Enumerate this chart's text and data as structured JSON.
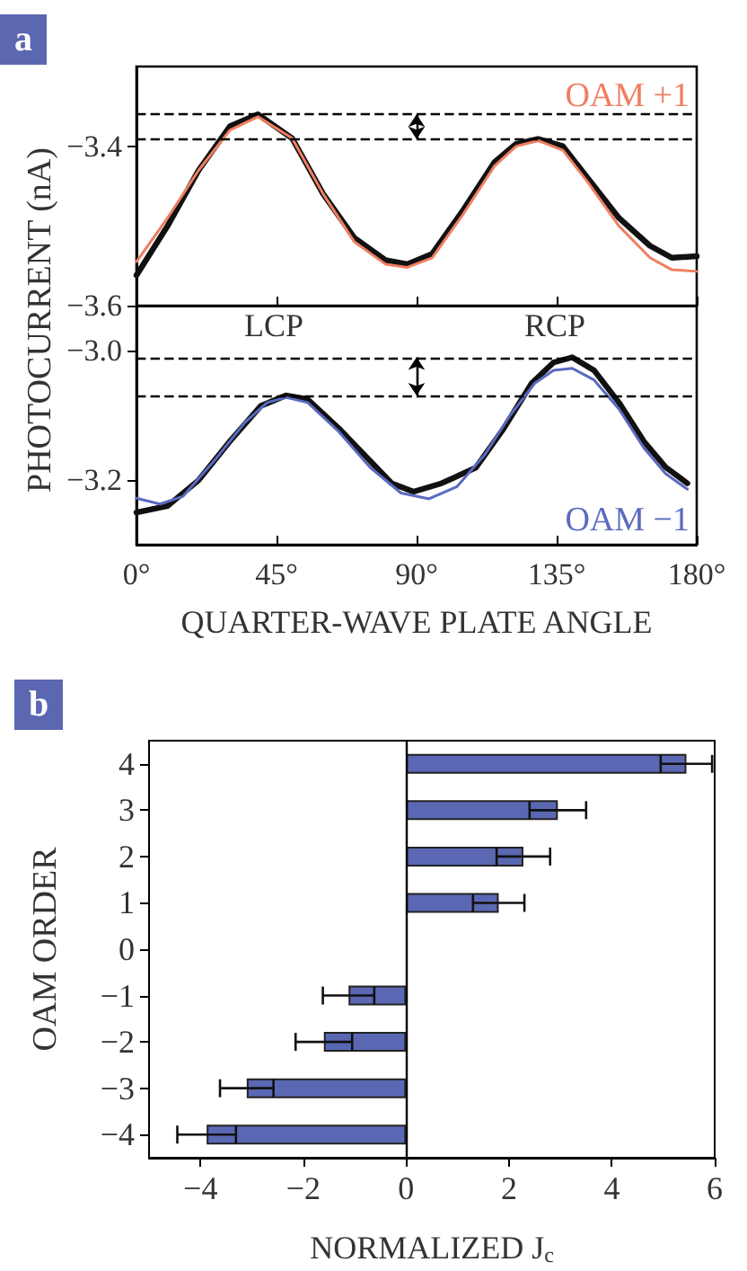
{
  "chart_data": [
    {
      "type": "line",
      "ylabel": "PHOTOCURRENT (nA)",
      "annotations": [
        "a"
      ],
      "xlim": [
        0,
        180
      ],
      "xticks": [
        {
          "value": 0,
          "label": null
        },
        {
          "value": 45,
          "label": null
        },
        {
          "value": 90,
          "label": null
        },
        {
          "value": 135,
          "label": null
        },
        {
          "value": 180,
          "label": null
        }
      ],
      "ylim": [
        -3.6,
        -3.3
      ],
      "yticks": [
        {
          "value": -3.6,
          "label": "−3.6"
        },
        {
          "value": -3.4,
          "label": "−3.4"
        }
      ],
      "tick_labels": "y",
      "grid": false,
      "marker": "none",
      "line_style": "solid",
      "ref_lines": [
        {
          "axis": "y",
          "value": -3.36,
          "line_style": "dashed",
          "color": "#000000"
        },
        {
          "axis": "y",
          "value": -3.391,
          "line_style": "dashed",
          "color": "#000000"
        }
      ],
      "series": [
        {
          "color": "#111111",
          "x": [
            0,
            10,
            20,
            30,
            39,
            50,
            60,
            70,
            80,
            87,
            95,
            105,
            115,
            122,
            129,
            137,
            145,
            155,
            165,
            172,
            180
          ],
          "values": [
            -3.562,
            -3.5,
            -3.43,
            -3.375,
            -3.36,
            -3.39,
            -3.46,
            -3.515,
            -3.543,
            -3.548,
            -3.535,
            -3.48,
            -3.42,
            -3.397,
            -3.391,
            -3.4,
            -3.44,
            -3.49,
            -3.525,
            -3.54,
            -3.538
          ]
        },
        {
          "name": "OAM +1",
          "color": "#f07e60",
          "x": [
            0,
            10,
            20,
            30,
            39,
            50,
            60,
            70,
            80,
            87,
            95,
            105,
            115,
            122,
            129,
            137,
            145,
            155,
            165,
            172,
            180
          ],
          "values": [
            -3.545,
            -3.49,
            -3.43,
            -3.38,
            -3.363,
            -3.39,
            -3.46,
            -3.52,
            -3.548,
            -3.552,
            -3.54,
            -3.485,
            -3.425,
            -3.4,
            -3.393,
            -3.405,
            -3.445,
            -3.5,
            -3.54,
            -3.555,
            -3.557
          ]
        }
      ]
    },
    {
      "type": "line",
      "xlabel": "QUARTER-WAVE PLATE ANGLE",
      "annotations": [
        "LCP",
        "RCP"
      ],
      "xlim": [
        0,
        180
      ],
      "xticks": [
        {
          "value": 0,
          "label": "0°"
        },
        {
          "value": 45,
          "label": "45°"
        },
        {
          "value": 90,
          "label": "90°"
        },
        {
          "value": 135,
          "label": "135°"
        },
        {
          "value": 180,
          "label": "180°"
        }
      ],
      "ylim": [
        -3.3,
        -2.93
      ],
      "yticks": [
        {
          "value": -3.2,
          "label": "−3.2"
        },
        {
          "value": -3.0,
          "label": "−3.0"
        }
      ],
      "grid": false,
      "marker": "none",
      "line_style": "solid",
      "ref_lines": [
        {
          "axis": "y",
          "value": -3.069,
          "line_style": "dashed",
          "color": "#000000"
        },
        {
          "axis": "y",
          "value": -3.01,
          "line_style": "dashed",
          "color": "#000000"
        }
      ],
      "series": [
        {
          "color": "#111111",
          "x": [
            0,
            10,
            20,
            30,
            40,
            48,
            55,
            65,
            75,
            82,
            89,
            98,
            109,
            118,
            127,
            134,
            140,
            147,
            155,
            163,
            170,
            177
          ],
          "values": [
            -3.25,
            -3.24,
            -3.2,
            -3.14,
            -3.085,
            -3.069,
            -3.075,
            -3.12,
            -3.17,
            -3.205,
            -3.218,
            -3.205,
            -3.181,
            -3.12,
            -3.05,
            -3.018,
            -3.01,
            -3.03,
            -3.08,
            -3.14,
            -3.18,
            -3.205
          ]
        },
        {
          "name": "OAM −1",
          "color": "#5a6ac0",
          "x": [
            0,
            7.5,
            15,
            25,
            35,
            42,
            48,
            55,
            65,
            75,
            85,
            94,
            103,
            112,
            120,
            128,
            134,
            140,
            147,
            155,
            163,
            170,
            177
          ],
          "values": [
            -3.228,
            -3.237,
            -3.225,
            -3.17,
            -3.11,
            -3.08,
            -3.072,
            -3.08,
            -3.125,
            -3.18,
            -3.22,
            -3.229,
            -3.21,
            -3.16,
            -3.1,
            -3.05,
            -3.03,
            -3.027,
            -3.045,
            -3.09,
            -3.15,
            -3.19,
            -3.214
          ]
        }
      ]
    },
    {
      "type": "bar",
      "orientation": "horizontal",
      "xlabel": "NORMALIZED J$_{c}$",
      "ylabel": "OAM ORDER",
      "annotations": [
        "b"
      ],
      "categories": [
        "4",
        "3",
        "2",
        "1",
        "0",
        "−1",
        "−2",
        "−3",
        "−4"
      ],
      "values": [
        5.45,
        2.95,
        2.28,
        1.8,
        null,
        -1.12,
        -1.6,
        -3.1,
        -3.88
      ],
      "errors": [
        0.5,
        0.55,
        0.52,
        0.5,
        null,
        0.5,
        0.55,
        0.52,
        0.57
      ],
      "color": "#5a68b4",
      "ref_lines": [
        {
          "axis": "x",
          "value": 0,
          "color": "#000000",
          "line_style": "solid"
        }
      ],
      "xlim": [
        -5,
        6
      ],
      "xticks": [
        {
          "value": -4,
          "label": "−4"
        },
        {
          "value": -2,
          "label": "−2"
        },
        0,
        2,
        4,
        6
      ],
      "grid": false
    }
  ]
}
